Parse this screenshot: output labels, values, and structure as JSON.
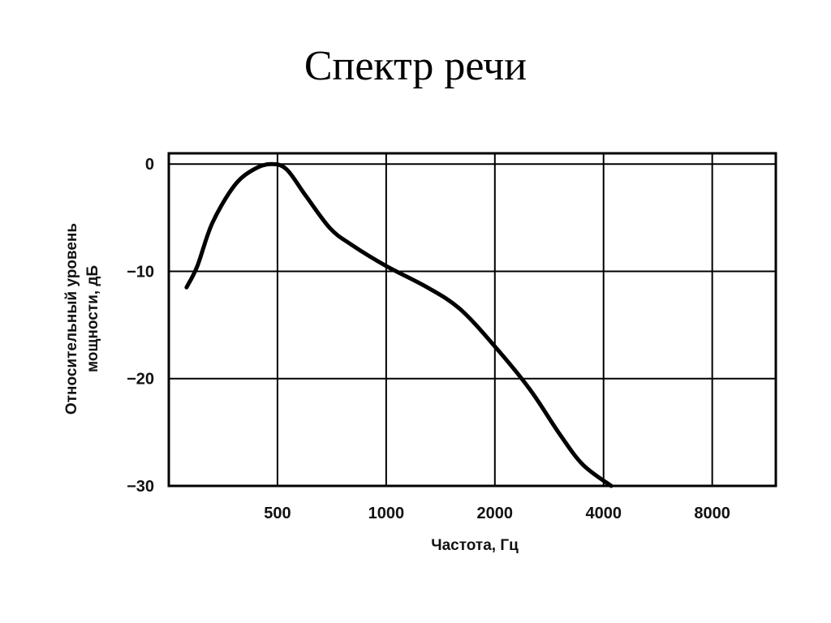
{
  "slide": {
    "title": "Спектр речи"
  },
  "chart_data": {
    "type": "line",
    "title": "",
    "xlabel": "Частота, Гц",
    "ylabel": [
      "Относительный уровень",
      "мощности, дБ"
    ],
    "x_scale": "log2",
    "xlim": [
      250,
      12000
    ],
    "ylim": [
      -30,
      1
    ],
    "x_ticks": [
      500,
      1000,
      2000,
      4000,
      8000
    ],
    "x_tick_labels": [
      "500",
      "1000",
      "2000",
      "4000",
      "8000"
    ],
    "y_ticks": [
      0,
      -10,
      -20,
      -30
    ],
    "y_tick_labels": [
      "0",
      "−10",
      "−20",
      "−30"
    ],
    "grid": true,
    "colors": {
      "line": "#000000",
      "grid": "#000000"
    },
    "series": [
      {
        "x": [
          280,
          300,
          330,
          380,
          430,
          480,
          530,
          600,
          700,
          800,
          1000,
          1300,
          1600,
          2000,
          2500,
          3000,
          3500,
          4200
        ],
        "y": [
          -11.5,
          -9.5,
          -5.5,
          -2,
          -0.5,
          0,
          -0.5,
          -3,
          -6,
          -7.5,
          -9.5,
          -11.5,
          -13.5,
          -17,
          -21,
          -25,
          -28,
          -30.5
        ]
      }
    ]
  }
}
